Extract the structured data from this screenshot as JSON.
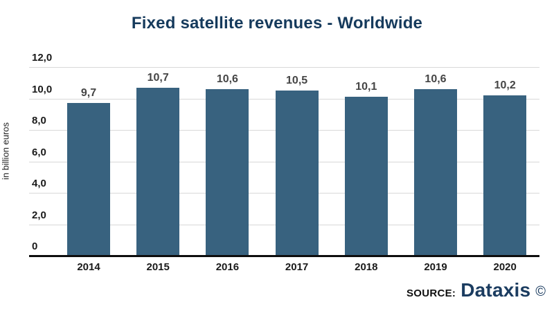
{
  "title": "Fixed satellite revenues - Worldwide",
  "y_axis_title": "in billion euros",
  "source": {
    "label": "SOURCE:",
    "brand": "Dataxis",
    "copyright": "©"
  },
  "colors": {
    "title": "#153a5c",
    "bar": "#38627f",
    "gridline": "#d8d8d8",
    "axis_line": "#0d0d0d",
    "value_label": "#454545",
    "tick_label": "#1a1a1a",
    "brand": "#1b3c60"
  },
  "chart_data": {
    "type": "bar",
    "title": "Fixed satellite revenues - Worldwide",
    "xlabel": "",
    "ylabel": "in billion euros",
    "categories": [
      "2014",
      "2015",
      "2016",
      "2017",
      "2018",
      "2019",
      "2020"
    ],
    "values": [
      9.7,
      10.7,
      10.6,
      10.5,
      10.1,
      10.6,
      10.2
    ],
    "value_labels": [
      "9,7",
      "10,7",
      "10,6",
      "10,5",
      "10,1",
      "10,6",
      "10,2"
    ],
    "ylim": [
      0,
      12
    ],
    "yticks": [
      0,
      2,
      4,
      6,
      8,
      10,
      12
    ],
    "ytick_labels": [
      "0",
      "2,0",
      "4,0",
      "6,0",
      "8,0",
      "10,0",
      "12,0"
    ],
    "grid": "horizontal",
    "legend": "none",
    "decimal_style": "comma"
  }
}
